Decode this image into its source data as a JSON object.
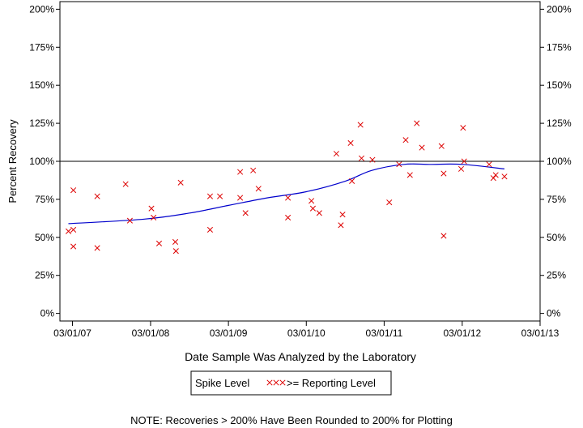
{
  "chart_data": {
    "type": "scatter",
    "xlabel": "Date Sample Was Analyzed by the Laboratory",
    "ylabel": "Percent Recovery",
    "xlim": [
      "2007-01-01",
      "2013-03-01"
    ],
    "ylim": [
      -5,
      205
    ],
    "x_ticks": [
      "03/01/07",
      "03/01/08",
      "03/01/09",
      "03/01/10",
      "03/01/11",
      "03/01/12",
      "03/01/13"
    ],
    "y_ticks": [
      "0%",
      "25%",
      "50%",
      "75%",
      "100%",
      "125%",
      "150%",
      "175%",
      "200%"
    ],
    "y_tick_values": [
      0,
      25,
      50,
      75,
      100,
      125,
      150,
      175,
      200
    ],
    "reference_line": 100,
    "legend": {
      "title": "Spike Level",
      "marker": "xxx",
      "label": ">= Reporting Level",
      "placement": "bottom-center"
    },
    "colors": {
      "points": "#dd0000",
      "trend": "#0000cc",
      "axes": "#000000"
    },
    "series": [
      {
        "name": ">= Reporting Level",
        "points": [
          [
            "2007-02-10",
            54
          ],
          [
            "2007-03-05",
            81
          ],
          [
            "2007-03-05",
            55
          ],
          [
            "2007-03-05",
            44
          ],
          [
            "2007-06-25",
            77
          ],
          [
            "2007-06-25",
            43
          ],
          [
            "2007-11-05",
            85
          ],
          [
            "2007-11-25",
            61
          ],
          [
            "2008-03-05",
            69
          ],
          [
            "2008-03-15",
            63
          ],
          [
            "2008-04-10",
            46
          ],
          [
            "2008-06-25",
            47
          ],
          [
            "2008-06-28",
            41
          ],
          [
            "2008-07-20",
            86
          ],
          [
            "2008-12-05",
            77
          ],
          [
            "2008-12-05",
            55
          ],
          [
            "2009-01-20",
            77
          ],
          [
            "2009-04-25",
            93
          ],
          [
            "2009-04-25",
            76
          ],
          [
            "2009-05-20",
            66
          ],
          [
            "2009-06-25",
            94
          ],
          [
            "2009-07-20",
            82
          ],
          [
            "2009-12-05",
            76
          ],
          [
            "2009-12-05",
            63
          ],
          [
            "2010-03-25",
            74
          ],
          [
            "2010-04-01",
            69
          ],
          [
            "2010-05-01",
            66
          ],
          [
            "2010-07-20",
            105
          ],
          [
            "2010-08-10",
            58
          ],
          [
            "2010-08-18",
            65
          ],
          [
            "2010-09-25",
            112
          ],
          [
            "2010-10-01",
            87
          ],
          [
            "2010-11-10",
            124
          ],
          [
            "2010-11-15",
            102
          ],
          [
            "2011-01-05",
            101
          ],
          [
            "2011-03-25",
            73
          ],
          [
            "2011-05-10",
            98
          ],
          [
            "2011-06-10",
            114
          ],
          [
            "2011-06-30",
            91
          ],
          [
            "2011-08-01",
            125
          ],
          [
            "2011-08-25",
            109
          ],
          [
            "2011-11-25",
            110
          ],
          [
            "2011-12-05",
            92
          ],
          [
            "2011-12-05",
            51
          ],
          [
            "2012-02-25",
            95
          ],
          [
            "2012-03-05",
            122
          ],
          [
            "2012-03-10",
            100
          ],
          [
            "2012-07-05",
            98
          ],
          [
            "2012-07-25",
            89
          ],
          [
            "2012-08-05",
            91
          ],
          [
            "2012-09-15",
            90
          ]
        ]
      }
    ],
    "trend": [
      [
        "2007-02-10",
        59
      ],
      [
        "2008-02-01",
        62
      ],
      [
        "2008-09-01",
        66
      ],
      [
        "2009-03-01",
        71
      ],
      [
        "2009-09-01",
        76
      ],
      [
        "2010-03-01",
        80
      ],
      [
        "2010-09-01",
        87
      ],
      [
        "2011-01-01",
        94
      ],
      [
        "2011-06-01",
        98
      ],
      [
        "2011-10-01",
        98
      ],
      [
        "2012-03-01",
        98
      ],
      [
        "2012-09-15",
        95
      ]
    ]
  },
  "note": "NOTE: Recoveries > 200% Have Been Rounded to 200% for Plotting"
}
